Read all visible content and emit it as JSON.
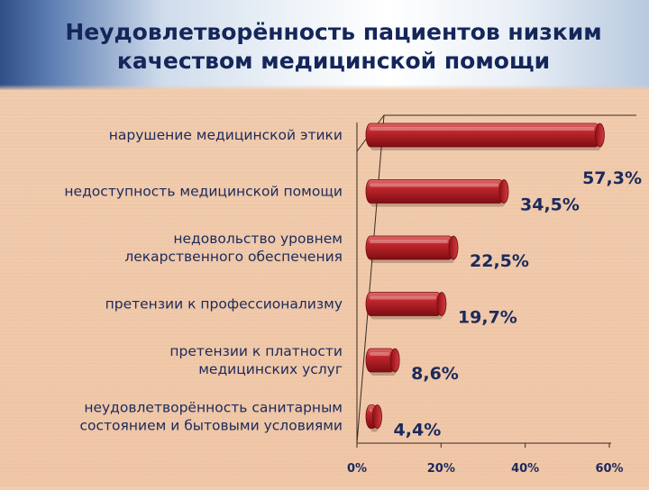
{
  "chart_data": {
    "type": "bar",
    "orientation": "horizontal",
    "title": "Неудовлетворённость пациентов низким качеством медицинской помощи",
    "categories": [
      [
        "нарушение медицинской этики"
      ],
      [
        "недоступность медицинской помощи"
      ],
      [
        "недовольство уровнем",
        "лекарственного обеспечения"
      ],
      [
        "претензии к профессионализму"
      ],
      [
        "претензии к платности",
        "медицинских услуг"
      ],
      [
        "неудовлетворённость санитарным",
        "состоянием и бытовыми условиями"
      ]
    ],
    "values": [
      57.3,
      34.5,
      22.5,
      19.7,
      8.6,
      4.4
    ],
    "data_labels": [
      "57,3%",
      "34,5%",
      "22,5%",
      "19,7%",
      "8,6%",
      "4,4%"
    ],
    "x_ticks": [
      0,
      20,
      40,
      60
    ],
    "x_tick_labels": [
      "0%",
      "20%",
      "40%",
      "60%"
    ],
    "xlim": [
      0,
      60
    ],
    "grid": false,
    "legend": "none",
    "bar_color": "#b3191f",
    "label_color": "#1b2a5c"
  }
}
